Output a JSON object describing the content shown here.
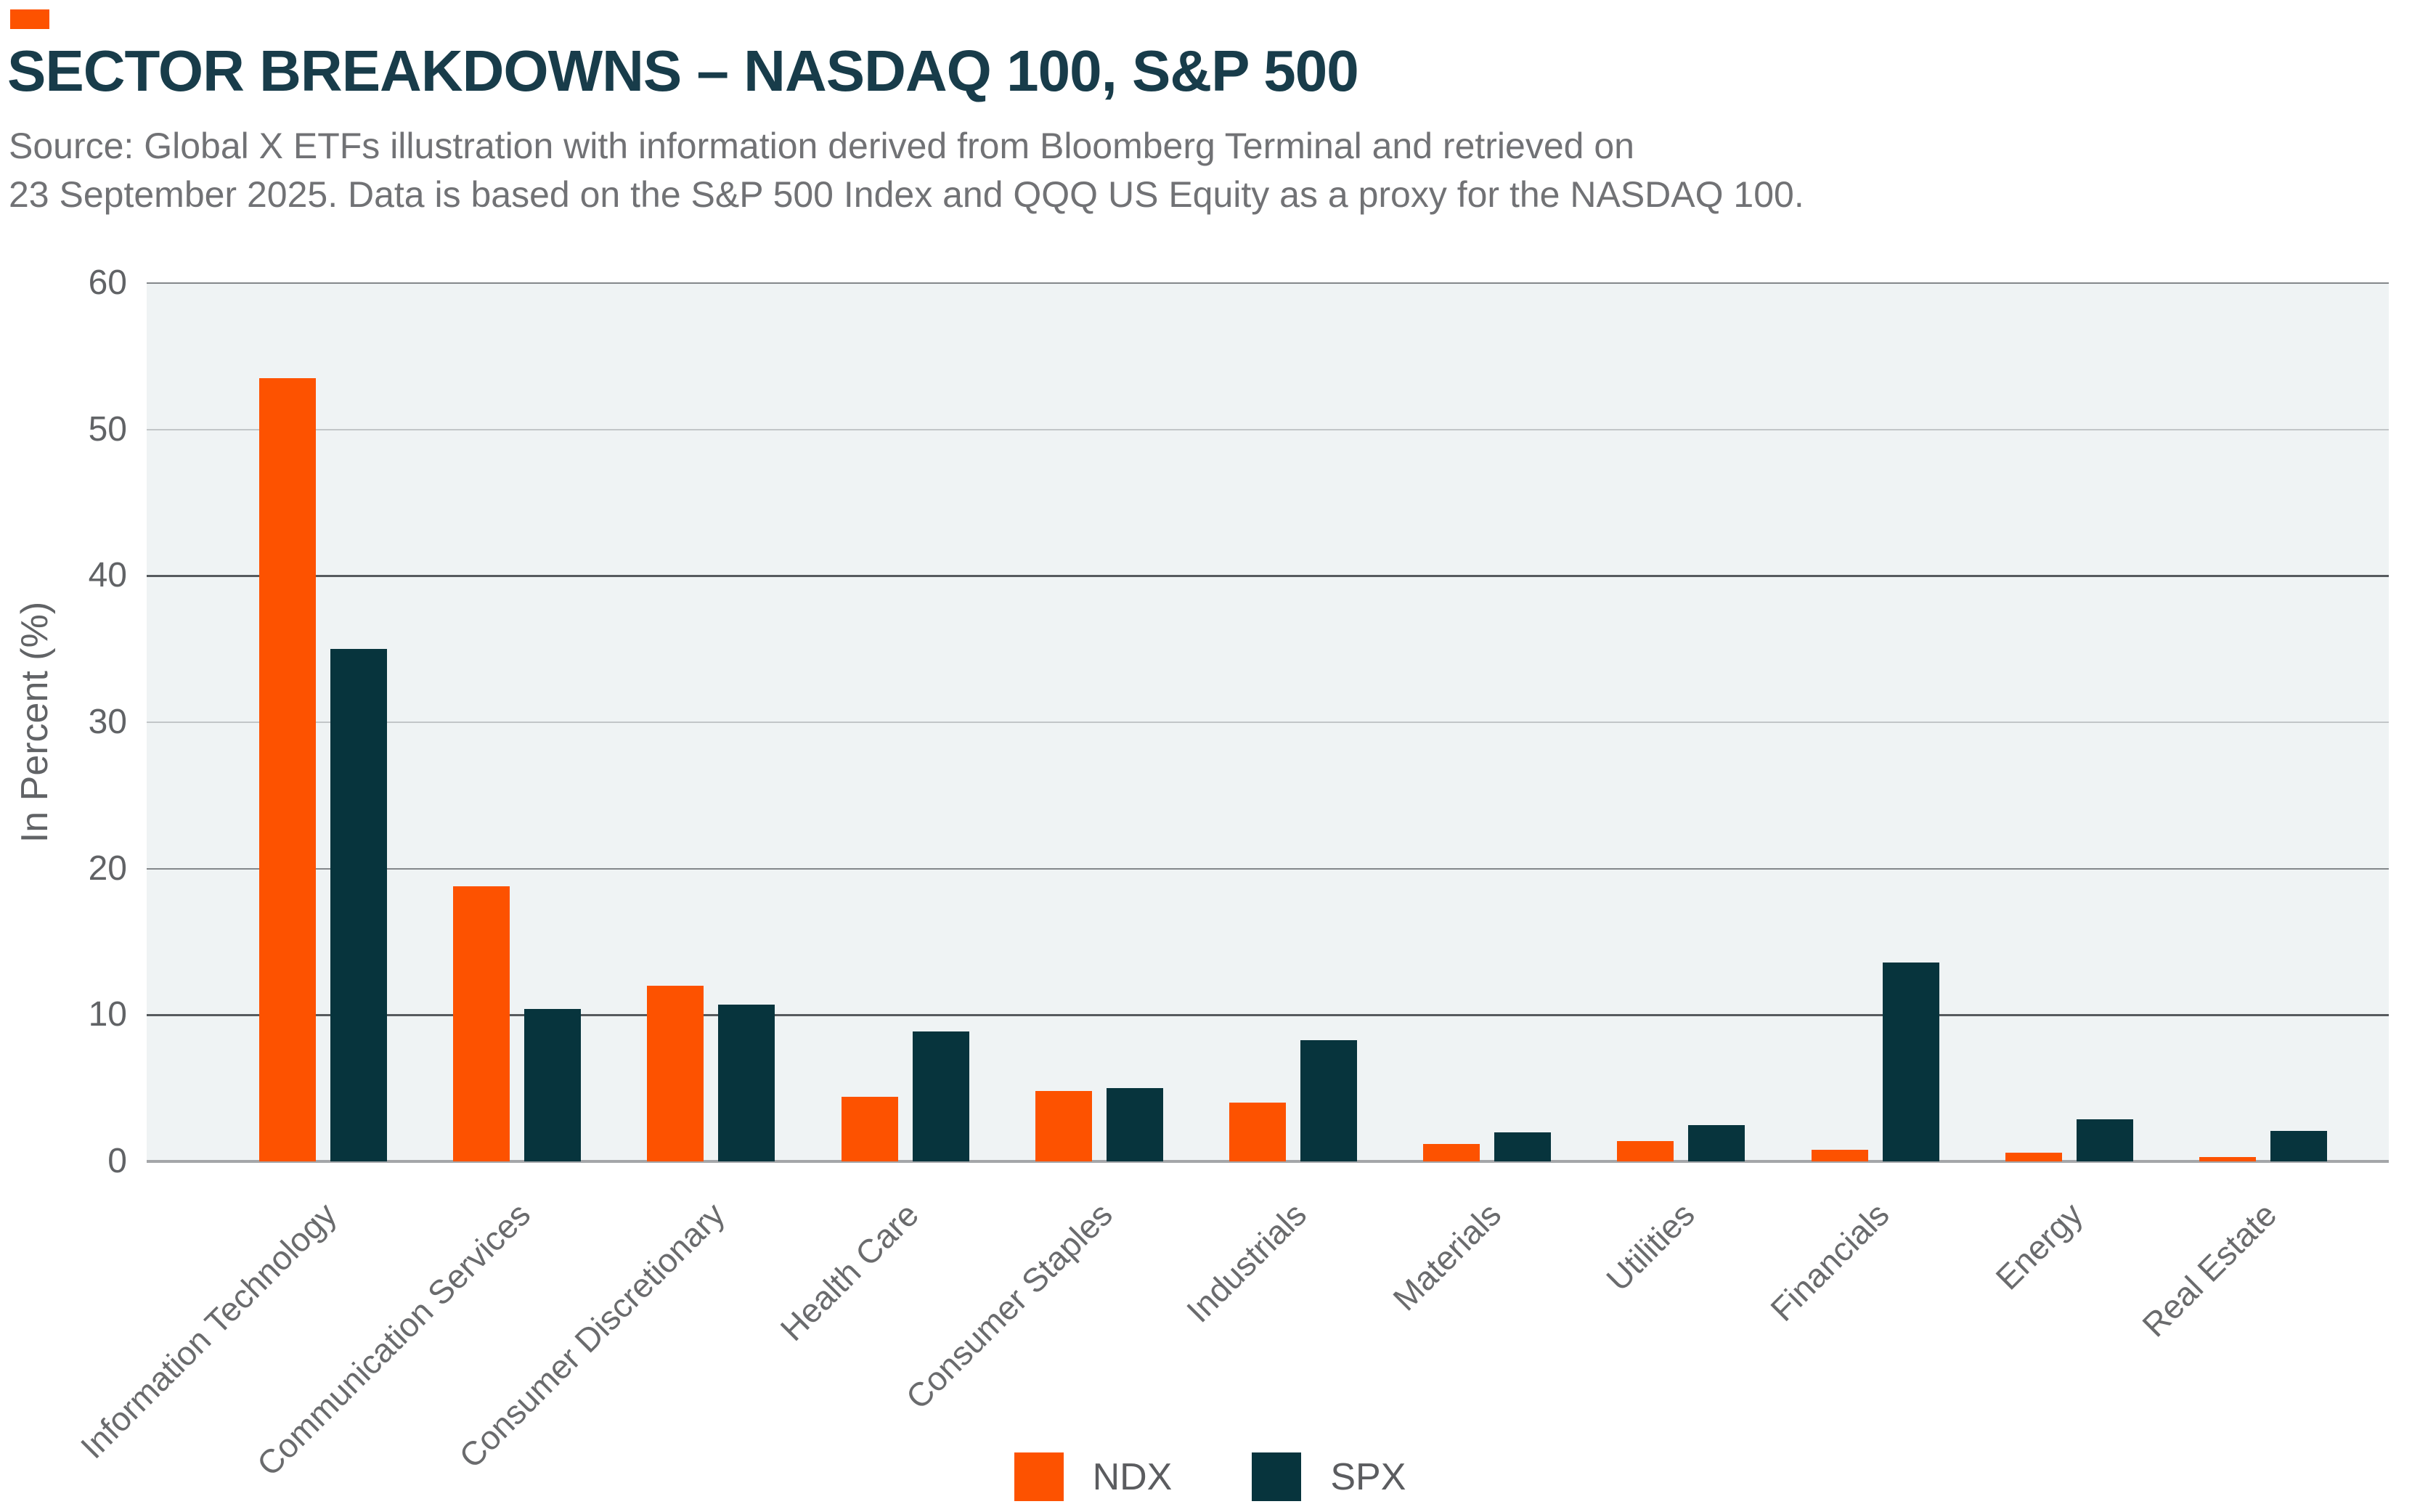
{
  "header": {
    "title": "SECTOR BREAKDOWNS – NASDAQ 100, S&P 500",
    "source_lines": [
      "Source: Global X ETFs illustration with information derived from Bloomberg Terminal and retrieved on",
      "23 September 2025. Data is based on the S&P 500 Index and QQQ US Equity as a proxy for the NASDAQ 100."
    ]
  },
  "colors": {
    "accent_orange": "#FD5200",
    "dark_teal": "#07343D",
    "title_text": "#183C4A",
    "source_text": "#717275",
    "axis_text": "#616366",
    "category_text": "#6A6B6D",
    "legend_text": "#5B5C5F",
    "plot_background": "#EFF3F4",
    "gridline_light": "#C2C6C8",
    "gridline_mid": "#84888B",
    "gridline_dark": "#565A5E",
    "baseline": "#A4A6A9"
  },
  "chart_data": {
    "type": "bar",
    "title": "SECTOR BREAKDOWNS – NASDAQ 100, S&P 500",
    "categories": [
      "Information Technology",
      "Communication Services",
      "Consumer Discretionary",
      "Health Care",
      "Consumer Staples",
      "Industrials",
      "Materials",
      "Utilities",
      "Financials",
      "Energy",
      "Real Estate"
    ],
    "series": [
      {
        "name": "NDX",
        "color": "#FD5200",
        "values": [
          53.5,
          18.8,
          12.0,
          4.4,
          4.8,
          4.0,
          1.2,
          1.4,
          0.8,
          0.6,
          0.3
        ]
      },
      {
        "name": "SPX",
        "color": "#07343D",
        "values": [
          35.0,
          10.4,
          10.7,
          8.9,
          5.0,
          8.3,
          2.0,
          2.5,
          13.6,
          2.9,
          2.1
        ]
      }
    ],
    "xlabel": "",
    "ylabel": "In Percent (%)",
    "ylim": [
      0,
      60
    ],
    "yticks": [
      0,
      10,
      20,
      30,
      40,
      50,
      60
    ],
    "grid": "horizontal",
    "legend_position": "bottom-center"
  },
  "legend": {
    "items": [
      {
        "label": "NDX",
        "color": "#FD5200"
      },
      {
        "label": "SPX",
        "color": "#07343D"
      }
    ]
  }
}
